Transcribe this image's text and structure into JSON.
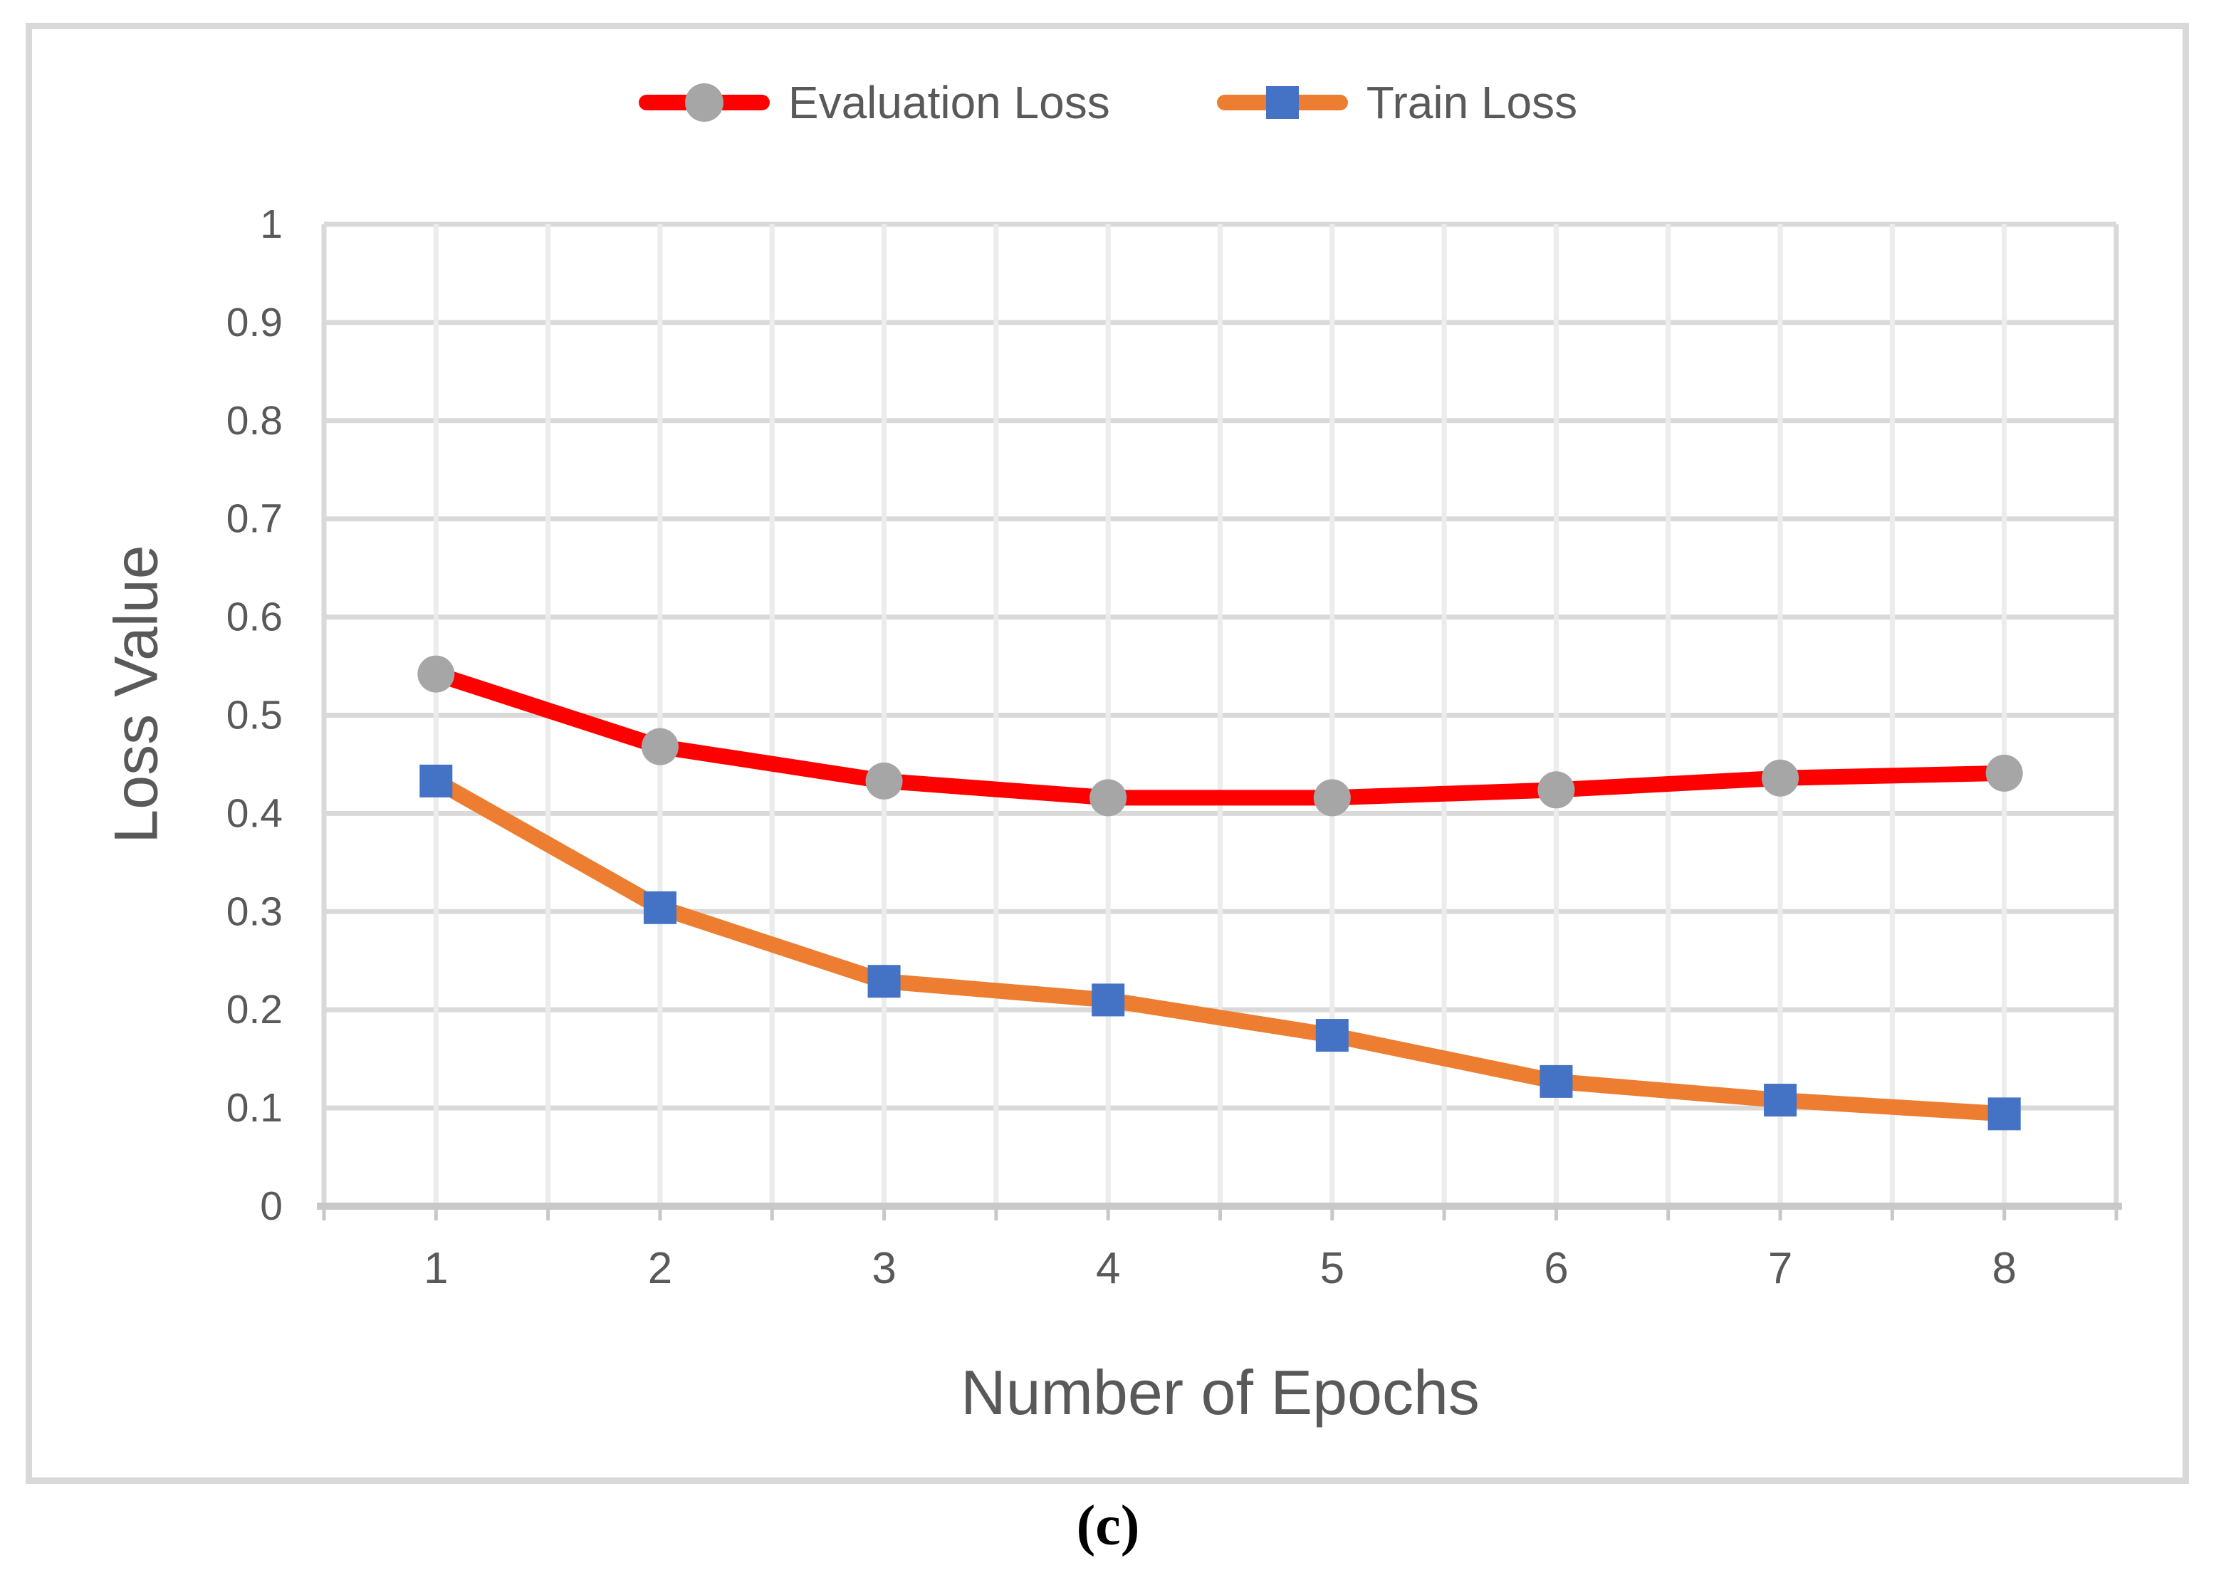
{
  "chart_data": {
    "type": "line",
    "categories": [
      1,
      2,
      3,
      4,
      5,
      6,
      7,
      8
    ],
    "series": [
      {
        "name": "Evaluation Loss",
        "values": [
          0.542,
          0.468,
          0.433,
          0.416,
          0.416,
          0.424,
          0.436,
          0.441
        ],
        "line_color": "#ff0000",
        "marker": "circle",
        "marker_color": "#a6a6a6"
      },
      {
        "name": "Train Loss",
        "values": [
          0.433,
          0.304,
          0.229,
          0.21,
          0.174,
          0.127,
          0.108,
          0.094
        ],
        "line_color": "#ed7d31",
        "marker": "square",
        "marker_color": "#4472c4"
      }
    ],
    "xlabel": "Number of Epochs",
    "ylabel": "Loss Value",
    "xtick_labels": [
      "1",
      "2",
      "3",
      "4",
      "5",
      "6",
      "7",
      "8"
    ],
    "ytick_labels": [
      "0",
      "0.1",
      "0.2",
      "0.3",
      "0.4",
      "0.5",
      "0.6",
      "0.7",
      "0.8",
      "0.9",
      "1"
    ],
    "ylim": [
      0,
      1
    ],
    "ytick_step": 0.1,
    "grid": true,
    "legend_position": "top center"
  },
  "caption": "(c)",
  "style_colors": {
    "background": "#ffffff",
    "figure_border": "#d9d9d9",
    "gridline_horizontal": "#d9d9d9",
    "gridline_vertical": "#ececec",
    "plot_edge": "#d9d9d9",
    "axis_line": "#c9c7c7",
    "tick_label_text": "#595959",
    "axis_title_text": "#595959",
    "legend_text": "#595959",
    "caption_text": "#000000"
  }
}
